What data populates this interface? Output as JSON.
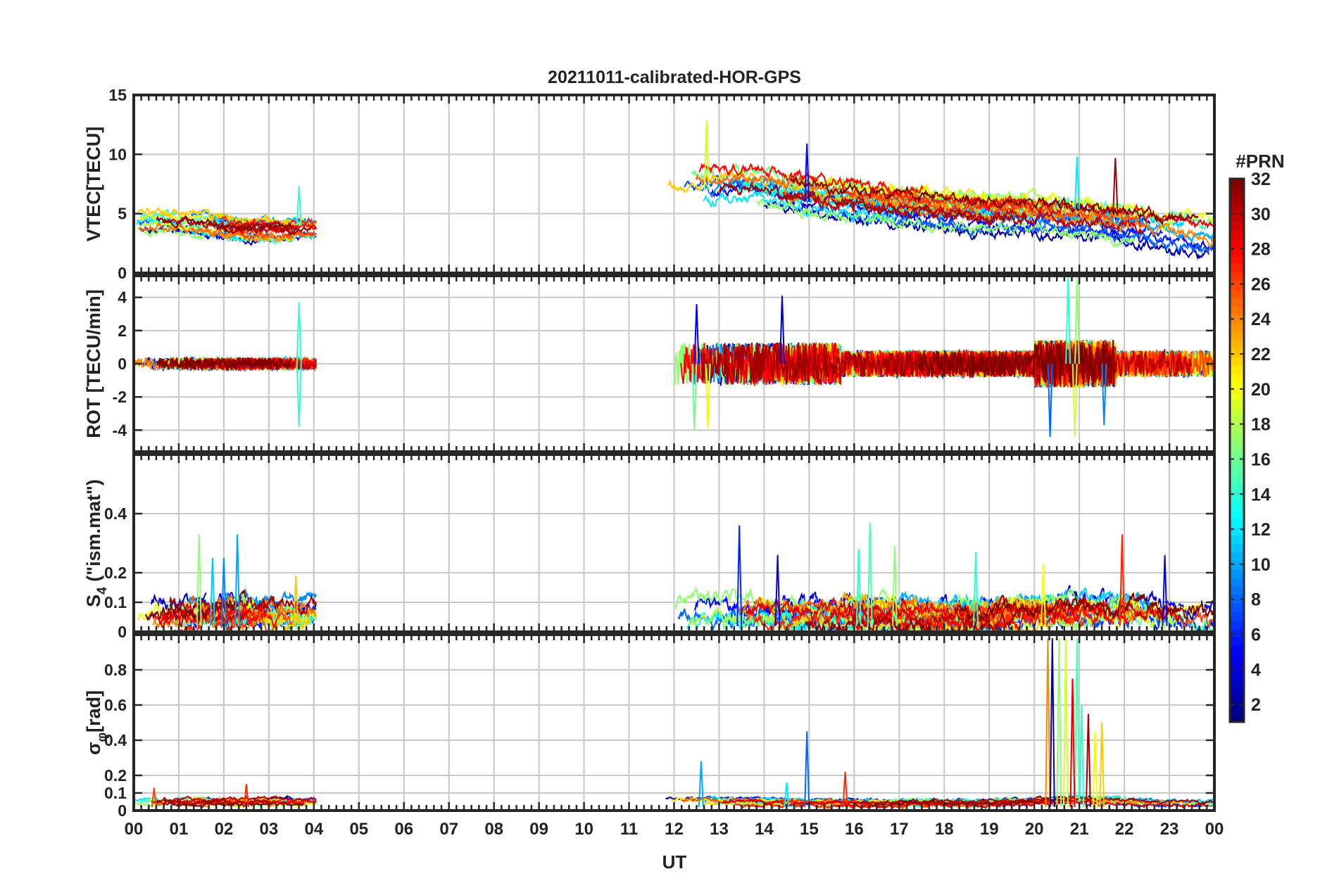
{
  "chart_data": {
    "type": "line",
    "title": "20211011-calibrated-HOR-GPS",
    "xlabel": "UT",
    "x_tick_labels": [
      "00",
      "01",
      "02",
      "03",
      "04",
      "05",
      "06",
      "07",
      "08",
      "09",
      "10",
      "11",
      "12",
      "13",
      "14",
      "15",
      "16",
      "17",
      "18",
      "19",
      "20",
      "21",
      "22",
      "23",
      "00"
    ],
    "xlim": [
      0,
      24
    ],
    "grid": true,
    "data_gap": [
      4.05,
      11.75
    ],
    "colorbar": {
      "label": "#PRN",
      "range": [
        1,
        32
      ],
      "ticks": [
        2,
        4,
        6,
        8,
        10,
        12,
        14,
        16,
        18,
        20,
        22,
        24,
        26,
        28,
        30,
        32
      ],
      "colormap": "jet"
    },
    "panels": [
      {
        "name": "vtec",
        "ylabel": "VTEC[TECU]",
        "ylim": [
          0,
          15
        ],
        "yticks": [
          0,
          5,
          10,
          15
        ],
        "segments": [
          {
            "t": [
              0,
              4.05
            ],
            "base": [
              4.2,
              4.2,
              4.0,
              3.6,
              3.5,
              3.7
            ],
            "spread": 1.0,
            "noise": 0.35
          },
          {
            "t": [
              11.75,
              24
            ],
            "base": [
              6.8,
              7.2,
              7.3,
              6.5,
              6.0,
              5.6,
              5.2,
              5.0,
              4.8,
              4.6,
              4.2,
              3.5,
              3.0
            ],
            "spread": 1.5,
            "noise": 0.5
          }
        ],
        "spikes": [
          {
            "t": 12.72,
            "v": 12.9,
            "prn": 19
          },
          {
            "t": 14.95,
            "v": 10.9,
            "prn": 5
          },
          {
            "t": 20.95,
            "v": 9.8,
            "prn": 12
          },
          {
            "t": 21.8,
            "v": 9.7,
            "prn": 31
          },
          {
            "t": 3.67,
            "v": 7.3,
            "prn": 14
          }
        ]
      },
      {
        "name": "rot",
        "ylabel": "ROT [TECU/min]",
        "ylim": [
          -5.3,
          5.3
        ],
        "yticks": [
          -4,
          -2,
          0,
          2,
          4
        ],
        "segments": [
          {
            "t": [
              0,
              4.05
            ],
            "base": [
              0,
              0
            ],
            "spread": 0.2,
            "noise": 0.35
          },
          {
            "t": [
              11.75,
              24
            ],
            "base": [
              0,
              0
            ],
            "spread": 0.3,
            "noise": 0.8,
            "burst_windows": [
              [
                11.8,
                15.7,
                1.6
              ],
              [
                20.0,
                21.8,
                1.8
              ]
            ]
          }
        ],
        "spikes": [
          {
            "t": 3.67,
            "v": 3.7,
            "prn": 14
          },
          {
            "t": 3.67,
            "v": -3.8,
            "prn": 14
          },
          {
            "t": 14.4,
            "v": 4.1,
            "prn": 3
          },
          {
            "t": 12.5,
            "v": 3.6,
            "prn": 4
          },
          {
            "t": 12.45,
            "v": -4.0,
            "prn": 16
          },
          {
            "t": 12.75,
            "v": -3.9,
            "prn": 20
          },
          {
            "t": 20.75,
            "v": 5.2,
            "prn": 14
          },
          {
            "t": 20.95,
            "v": 5.2,
            "prn": 17
          },
          {
            "t": 20.35,
            "v": -4.4,
            "prn": 8
          },
          {
            "t": 20.9,
            "v": -4.4,
            "prn": 19
          },
          {
            "t": 21.55,
            "v": -3.7,
            "prn": 9
          }
        ]
      },
      {
        "name": "s4",
        "ylabel": "S4 (\"ism.mat\")",
        "ylabel_main": "S",
        "ylabel_sub": "4",
        "ylabel_rest": " (\"ism.mat\")",
        "ylim": [
          0,
          0.6
        ],
        "yticks": [
          0,
          0.1,
          0.2,
          0.4
        ],
        "segments": [
          {
            "t": [
              0,
              4.05
            ],
            "base": [
              0.05,
              0.06,
              0.07,
              0.06,
              0.06
            ],
            "spread": 0.04,
            "noise": 0.03,
            "positive": true
          },
          {
            "t": [
              11.75,
              24
            ],
            "base": [
              0.05,
              0.07,
              0.07,
              0.06,
              0.06,
              0.06,
              0.05,
              0.05,
              0.07,
              0.07,
              0.07,
              0.06,
              0.04
            ],
            "spread": 0.04,
            "noise": 0.03,
            "positive": true
          }
        ],
        "spikes": [
          {
            "t": 1.45,
            "v": 0.33,
            "prn": 17
          },
          {
            "t": 2.3,
            "v": 0.33,
            "prn": 10
          },
          {
            "t": 2.0,
            "v": 0.25,
            "prn": 9
          },
          {
            "t": 1.75,
            "v": 0.25,
            "prn": 11
          },
          {
            "t": 3.6,
            "v": 0.19,
            "prn": 22
          },
          {
            "t": 13.45,
            "v": 0.36,
            "prn": 6
          },
          {
            "t": 16.35,
            "v": 0.37,
            "prn": 15
          },
          {
            "t": 14.3,
            "v": 0.26,
            "prn": 4
          },
          {
            "t": 16.1,
            "v": 0.28,
            "prn": 14
          },
          {
            "t": 16.9,
            "v": 0.29,
            "prn": 17
          },
          {
            "t": 21.95,
            "v": 0.33,
            "prn": 27
          },
          {
            "t": 22.9,
            "v": 0.26,
            "prn": 5
          },
          {
            "t": 20.2,
            "v": 0.23,
            "prn": 20
          },
          {
            "t": 18.7,
            "v": 0.27,
            "prn": 14
          }
        ]
      },
      {
        "name": "sigma_phi",
        "ylabel": "σφ[rad]",
        "ylabel_main": "σ",
        "ylabel_sub": "φ",
        "ylabel_rest": "[rad]",
        "ylim": [
          0,
          1.0
        ],
        "yticks": [
          0,
          0.1,
          0.2,
          0.4,
          0.6,
          0.8
        ],
        "segments": [
          {
            "t": [
              0,
              4.05
            ],
            "base": [
              0.05,
              0.05
            ],
            "spread": 0.015,
            "noise": 0.012,
            "positive": true
          },
          {
            "t": [
              11.75,
              24
            ],
            "base": [
              0.06,
              0.05,
              0.05,
              0.04,
              0.04,
              0.04,
              0.04,
              0.04,
              0.05,
              0.06,
              0.05,
              0.04,
              0.04
            ],
            "spread": 0.015,
            "noise": 0.012,
            "positive": true
          }
        ],
        "spikes": [
          {
            "t": 0.45,
            "v": 0.13,
            "prn": 26
          },
          {
            "t": 2.5,
            "v": 0.15,
            "prn": 27
          },
          {
            "t": 12.6,
            "v": 0.28,
            "prn": 10
          },
          {
            "t": 14.95,
            "v": 0.45,
            "prn": 8
          },
          {
            "t": 15.8,
            "v": 0.22,
            "prn": 27
          },
          {
            "t": 14.5,
            "v": 0.16,
            "prn": 12
          },
          {
            "t": 20.3,
            "v": 0.98,
            "prn": 24
          },
          {
            "t": 20.4,
            "v": 0.98,
            "prn": 2
          },
          {
            "t": 20.55,
            "v": 0.98,
            "prn": 17
          },
          {
            "t": 20.7,
            "v": 0.98,
            "prn": 19
          },
          {
            "t": 20.95,
            "v": 0.98,
            "prn": 15
          },
          {
            "t": 21.05,
            "v": 0.6,
            "prn": 14
          },
          {
            "t": 21.2,
            "v": 0.55,
            "prn": 31
          },
          {
            "t": 21.5,
            "v": 0.5,
            "prn": 22
          },
          {
            "t": 20.85,
            "v": 0.75,
            "prn": 29
          },
          {
            "t": 21.35,
            "v": 0.45,
            "prn": 20
          }
        ]
      }
    ]
  }
}
